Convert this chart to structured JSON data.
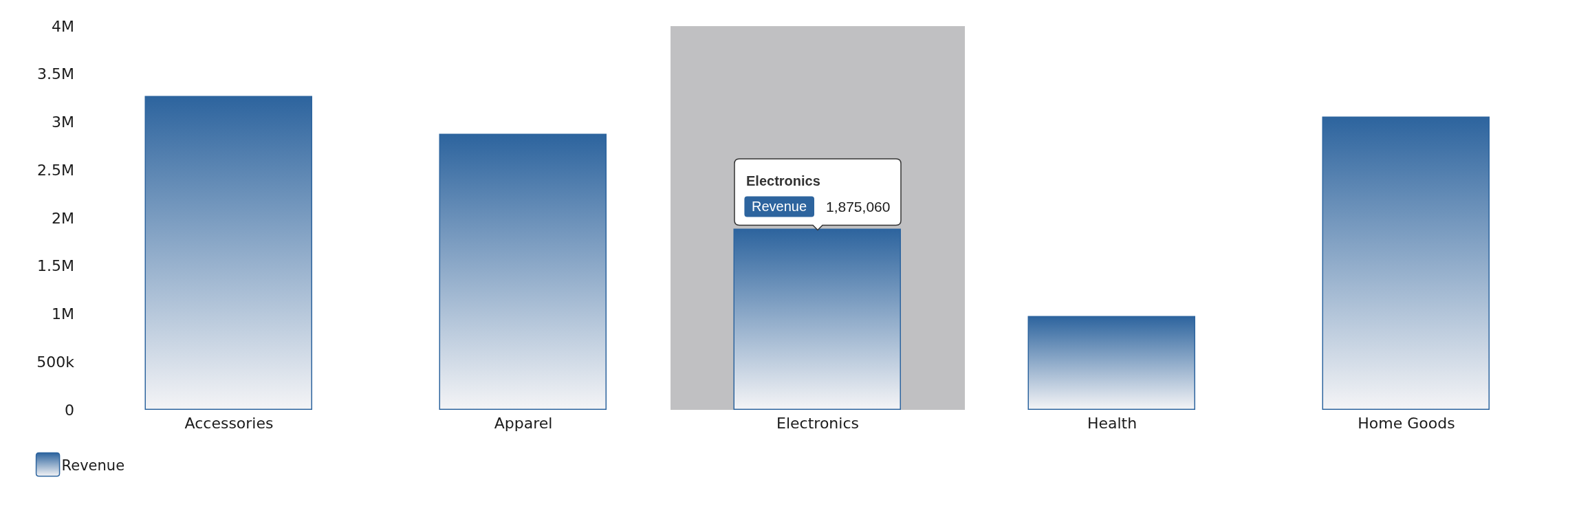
{
  "chart_data": {
    "type": "bar",
    "categories": [
      "Accessories",
      "Apparel",
      "Electronics",
      "Health",
      "Home Goods"
    ],
    "series": [
      {
        "name": "Revenue",
        "color": "#2d649e",
        "values": [
          3260000,
          2870000,
          1875060,
          970000,
          3045000
        ],
        "value_labels": [
          null,
          null,
          "1,875,060",
          null,
          null
        ]
      }
    ],
    "ylim": [
      0,
      4000000
    ],
    "yticks": [
      0,
      {
        "value": 500000,
        "label": "500k"
      },
      {
        "value": 1000000,
        "label": "1M"
      },
      {
        "value": 1500000,
        "label": "1.5M"
      },
      {
        "value": 2000000,
        "label": "2M"
      },
      {
        "value": 2500000,
        "label": "2.5M"
      },
      {
        "value": 3000000,
        "label": "3M"
      },
      {
        "value": 3500000,
        "label": "3.5M"
      },
      {
        "value": 4000000,
        "label": "4M"
      }
    ],
    "grid": false,
    "legend": "bottom left",
    "bands": [
      {
        "axis": "x",
        "from": "Electronics",
        "to": "Electronics",
        "color": "#c0c0c2"
      }
    ],
    "annotations": [
      "Electronics",
      "Revenue"
    ]
  }
}
